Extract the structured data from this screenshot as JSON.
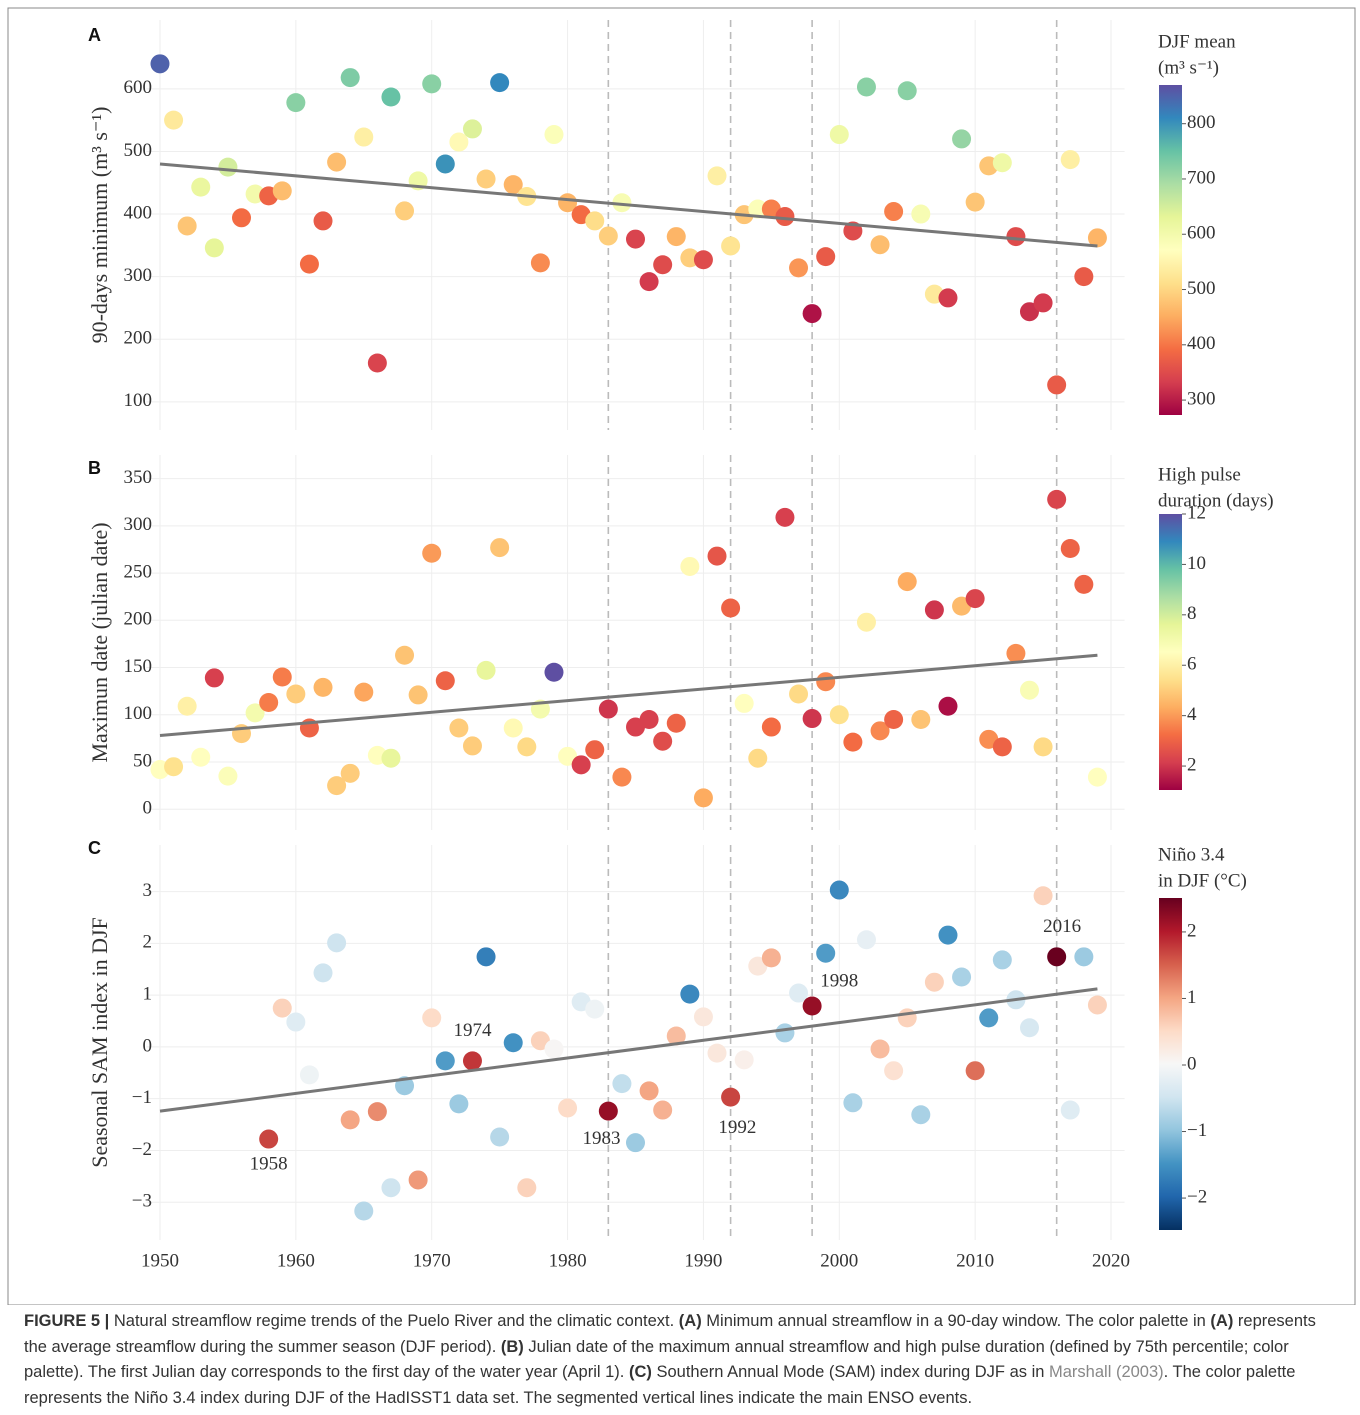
{
  "chart_data": [
    {
      "type": "scatter",
      "label": "A",
      "y_label": "90-days minimum (m³ s⁻¹)",
      "x": [
        1950,
        1951,
        1952,
        1953,
        1954,
        1955,
        1956,
        1957,
        1958,
        1959,
        1960,
        1961,
        1962,
        1963,
        1964,
        1965,
        1966,
        1967,
        1968,
        1969,
        1970,
        1971,
        1972,
        1973,
        1974,
        1975,
        1976,
        1977,
        1978,
        1979,
        1980,
        1981,
        1982,
        1983,
        1984,
        1985,
        1986,
        1987,
        1988,
        1989,
        1990,
        1991,
        1992,
        1993,
        1994,
        1995,
        1996,
        1997,
        1998,
        1999,
        2000,
        2001,
        2002,
        2003,
        2004,
        2005,
        2006,
        2007,
        2008,
        2009,
        2010,
        2011,
        2012,
        2013,
        2014,
        2015,
        2016,
        2017,
        2018,
        2019
      ],
      "values": [
        640,
        550,
        381,
        443,
        346,
        475,
        394,
        432,
        429,
        437,
        578,
        320,
        389,
        483,
        618,
        523,
        162,
        587,
        405,
        453,
        608,
        480,
        515,
        536,
        456,
        610,
        447,
        428,
        322,
        527,
        418,
        399,
        389,
        365,
        418,
        360,
        292,
        319,
        364,
        330,
        327,
        461,
        349,
        399,
        408,
        408,
        396,
        314,
        241,
        332,
        527,
        373,
        603,
        351,
        404,
        597,
        400,
        272,
        266,
        520,
        419,
        477,
        482,
        364,
        244,
        258,
        127,
        487,
        300,
        362
      ],
      "color_values": [
        850,
        530,
        480,
        620,
        630,
        650,
        390,
        600,
        380,
        470,
        720,
        390,
        370,
        470,
        730,
        540,
        340,
        750,
        490,
        610,
        720,
        800,
        560,
        640,
        490,
        810,
        460,
        520,
        420,
        580,
        460,
        390,
        510,
        490,
        590,
        340,
        330,
        350,
        460,
        490,
        350,
        540,
        520,
        480,
        580,
        410,
        370,
        430,
        290,
        370,
        610,
        350,
        720,
        470,
        410,
        720,
        590,
        530,
        330,
        710,
        480,
        480,
        610,
        350,
        320,
        330,
        370,
        540,
        370,
        460
      ],
      "trend": {
        "x": [
          1950,
          2019
        ],
        "y": [
          480,
          349
        ]
      },
      "xlim": [
        1949,
        2021
      ],
      "xticks": [
        1950,
        1960,
        1970,
        1980,
        1990,
        2000,
        2010,
        2020
      ],
      "ylim": [
        55,
        710
      ],
      "yticks": [
        100,
        200,
        300,
        400,
        500,
        600
      ],
      "grid": true,
      "colorbar": {
        "title": [
          "DJF mean",
          "(m³ s⁻¹)"
        ],
        "clim": [
          273,
          870
        ],
        "ticks": [
          300,
          400,
          500,
          600,
          700,
          800
        ],
        "colorscale": [
          "#9e0142",
          "#d53e4f",
          "#f46d43",
          "#fdae61",
          "#fee08b",
          "#ffffbf",
          "#e6f598",
          "#abdda4",
          "#66c2a5",
          "#3288bd",
          "#5e4fa2"
        ]
      }
    },
    {
      "type": "scatter",
      "label": "B",
      "y_label": "Maximun date (julian date)",
      "x": [
        1950,
        1951,
        1952,
        1953,
        1954,
        1955,
        1956,
        1957,
        1958,
        1959,
        1960,
        1961,
        1962,
        1963,
        1964,
        1965,
        1966,
        1967,
        1968,
        1969,
        1970,
        1971,
        1972,
        1973,
        1974,
        1975,
        1976,
        1977,
        1978,
        1979,
        1980,
        1981,
        1982,
        1983,
        1984,
        1985,
        1986,
        1987,
        1988,
        1989,
        1990,
        1991,
        1992,
        1993,
        1994,
        1995,
        1996,
        1997,
        1998,
        1999,
        2000,
        2001,
        2002,
        2003,
        2004,
        2005,
        2006,
        2007,
        2008,
        2009,
        2010,
        2011,
        2012,
        2013,
        2014,
        2015,
        2016,
        2017,
        2018,
        2019
      ],
      "values": [
        42,
        45,
        109,
        55,
        139,
        35,
        80,
        102,
        113,
        140,
        122,
        86,
        129,
        25,
        38,
        124,
        57,
        54,
        163,
        121,
        271,
        136,
        86,
        67,
        147,
        277,
        86,
        66,
        106,
        145,
        56,
        47,
        63,
        106,
        34,
        87,
        95,
        72,
        91,
        257,
        12,
        268,
        213,
        112,
        54,
        87,
        309,
        122,
        96,
        135,
        100,
        71,
        198,
        83,
        95,
        241,
        95,
        211,
        109,
        215,
        223,
        74,
        66,
        165,
        126,
        66,
        328,
        276,
        238,
        34
      ],
      "color_values": [
        6.5,
        5.5,
        6,
        6.5,
        2.2,
        6.7,
        5,
        7,
        3.5,
        3.5,
        5,
        3,
        4.5,
        5,
        5,
        4.2,
        6.5,
        7.5,
        4.8,
        4.8,
        4,
        3,
        5,
        5,
        7.5,
        4.8,
        6.3,
        5.3,
        7,
        12,
        6.5,
        2.2,
        3,
        2,
        3.7,
        2.2,
        2.2,
        2.5,
        3,
        6.3,
        4.3,
        2.7,
        3,
        6.5,
        5.3,
        3.2,
        2.2,
        5.3,
        2,
        3.7,
        5.5,
        3.2,
        6,
        3.7,
        3,
        4.3,
        4.8,
        2,
        1.3,
        4.6,
        2.3,
        3.8,
        3,
        3.8,
        6.8,
        5.3,
        2.3,
        3,
        3,
        6.5
      ],
      "trend": {
        "x": [
          1950,
          2019
        ],
        "y": [
          78,
          163
        ]
      },
      "xlim": [
        1949,
        2021
      ],
      "xticks": [
        1950,
        1960,
        1970,
        1980,
        1990,
        2000,
        2010,
        2020
      ],
      "ylim": [
        -22,
        375
      ],
      "yticks": [
        0,
        50,
        100,
        150,
        200,
        250,
        300,
        350
      ],
      "grid": true,
      "colorbar": {
        "title": [
          "High pulse",
          "duration (days)"
        ],
        "clim": [
          1.05,
          12
        ],
        "ticks": [
          2,
          4,
          6,
          8,
          10,
          12
        ],
        "colorscale": [
          "#9e0142",
          "#d53e4f",
          "#f46d43",
          "#fdae61",
          "#fee08b",
          "#ffffbf",
          "#e6f598",
          "#abdda4",
          "#66c2a5",
          "#3288bd",
          "#5e4fa2"
        ]
      }
    },
    {
      "type": "scatter",
      "label": "C",
      "y_label": "Seasonal SAM index in DJF",
      "x": [
        1950,
        1951,
        1952,
        1953,
        1954,
        1955,
        1956,
        1957,
        1958,
        1959,
        1960,
        1961,
        1962,
        1963,
        1964,
        1965,
        1966,
        1967,
        1968,
        1969,
        1970,
        1971,
        1972,
        1973,
        1974,
        1975,
        1976,
        1977,
        1978,
        1979,
        1980,
        1981,
        1982,
        1983,
        1984,
        1985,
        1986,
        1987,
        1988,
        1989,
        1990,
        1991,
        1992,
        1993,
        1994,
        1995,
        1996,
        1997,
        1998,
        1999,
        2000,
        2001,
        2002,
        2003,
        2004,
        2005,
        2006,
        2007,
        2008,
        2009,
        2010,
        2011,
        2012,
        2013,
        2014,
        2015,
        2016,
        2017,
        2018,
        2019
      ],
      "values": [
        null,
        null,
        null,
        null,
        null,
        null,
        null,
        null,
        -1.78,
        0.75,
        0.48,
        -0.54,
        1.43,
        2.01,
        -1.41,
        -3.17,
        -1.25,
        -2.72,
        -0.75,
        -2.57,
        0.56,
        -0.27,
        -1.1,
        -0.27,
        1.74,
        -1.74,
        0.08,
        -2.72,
        0.12,
        -0.04,
        -1.18,
        0.87,
        0.73,
        -1.24,
        -0.71,
        -1.85,
        -0.85,
        -1.22,
        0.21,
        1.02,
        0.58,
        -0.12,
        -0.97,
        -0.25,
        1.56,
        1.72,
        0.27,
        1.04,
        0.79,
        1.81,
        3.03,
        -1.08,
        2.07,
        -0.04,
        -0.46,
        0.56,
        -1.31,
        1.25,
        2.16,
        1.35,
        -0.46,
        0.56,
        1.68,
        0.91,
        0.37,
        2.92,
        1.74,
        -1.22,
        1.74,
        0.81
      ],
      "color_values": [
        null,
        null,
        null,
        null,
        null,
        null,
        null,
        null,
        1.7,
        0.6,
        -0.3,
        -0.1,
        -0.5,
        -0.5,
        1.0,
        -0.7,
        1.2,
        -0.5,
        -0.9,
        1.1,
        0.5,
        -1.4,
        -0.9,
        1.8,
        -1.7,
        -0.7,
        -1.5,
        0.6,
        0.6,
        0.05,
        0.5,
        -0.3,
        -0.1,
        2.2,
        -0.6,
        -0.9,
        1.0,
        0.9,
        0.8,
        -1.6,
        0.3,
        0.3,
        1.7,
        0.15,
        0.3,
        0.9,
        -0.8,
        -0.3,
        2.2,
        -1.4,
        -1.6,
        -0.8,
        -0.2,
        0.8,
        0.4,
        0.6,
        -0.8,
        0.6,
        -1.5,
        -0.8,
        1.4,
        -1.4,
        -0.8,
        -0.5,
        -0.4,
        0.6,
        2.5,
        -0.3,
        -0.9,
        0.6
      ],
      "trend": {
        "x": [
          1950,
          2019
        ],
        "y": [
          -1.24,
          1.12
        ]
      },
      "annotations": [
        {
          "text": "1958",
          "x": 1958,
          "y": -2.28
        },
        {
          "text": "1974",
          "x": 1973,
          "y": 0.29
        },
        {
          "text": "1983",
          "x": 1982.5,
          "y": -1.79
        },
        {
          "text": "1992",
          "x": 1992.5,
          "y": -1.58
        },
        {
          "text": "1998",
          "x": 2000,
          "y": 1.25
        },
        {
          "text": "2016",
          "x": 2016.4,
          "y": 2.3
        }
      ],
      "xlim": [
        1949,
        2021
      ],
      "xticks": [
        1950,
        1960,
        1970,
        1980,
        1990,
        2000,
        2010,
        2020
      ],
      "ylim": [
        -3.73,
        3.9
      ],
      "yticks": [
        {
          "value": -3,
          "label": "−3"
        },
        {
          "value": -2,
          "label": "−2"
        },
        {
          "value": -1,
          "label": "−1"
        },
        0,
        1,
        2,
        3
      ],
      "grid": true,
      "colorbar": {
        "title": [
          "Niño 3.4",
          "in DJF (°C)"
        ],
        "clim": [
          -2.48,
          2.51
        ],
        "ticks": [
          {
            "value": -2,
            "label": "−2"
          },
          {
            "value": -1,
            "label": "−1"
          },
          0,
          1,
          2
        ],
        "colorscale": [
          "#053061",
          "#2166ac",
          "#4393c3",
          "#92c5de",
          "#d1e5f0",
          "#f7f7f7",
          "#fddbc7",
          "#f4a582",
          "#d6604d",
          "#b2182b",
          "#67001f"
        ]
      }
    }
  ],
  "vlines": [
    1983,
    1992,
    1998,
    2016
  ],
  "caption": [
    {
      "text": "FIGURE 5 |",
      "style": "bold"
    },
    {
      "text": " Natural streamflow regime trends of the Puelo River and the climatic context. "
    },
    {
      "text": "(A)",
      "style": "bold"
    },
    {
      "text": " Minimum annual streamflow in a 90-day window. The color palette in "
    },
    {
      "text": "(A)",
      "style": "bold"
    },
    {
      "text": " represents the average streamflow during the summer season (DJF period). "
    },
    {
      "text": "(B)",
      "style": "bold"
    },
    {
      "text": " Julian date of the maximum annual streamflow and high pulse duration (defined by 75th percentile; color palette). The first Julian day corresponds to the first day of the water year (April 1). "
    },
    {
      "text": "(C)",
      "style": "bold"
    },
    {
      "text": " Southern Annual Mode (SAM) index during DJF as in "
    },
    {
      "text": "Marshall (2003)",
      "style": "link"
    },
    {
      "text": ". The color palette represents the Niño 3.4 index during DJF of the HadISST1 data set. The segmented vertical lines indicate the main ENSO events."
    }
  ]
}
